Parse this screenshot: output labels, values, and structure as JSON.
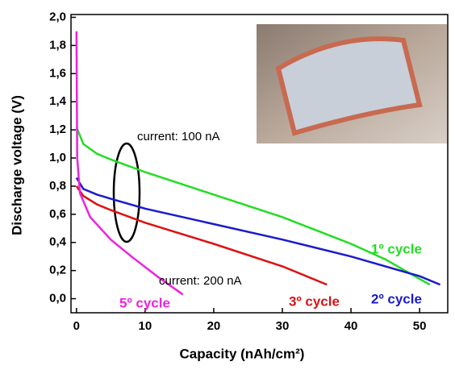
{
  "chart_data": {
    "type": "line",
    "x_label": "Capacity (nAh/cm²)",
    "y_label": "Discharge voltage (V)",
    "xlim": [
      -0.8,
      54.1
    ],
    "ylim": [
      -0.1,
      2.02
    ],
    "xticks": [
      0,
      10,
      20,
      30,
      40,
      50
    ],
    "yticks": [
      {
        "value": 0.0,
        "label": "0,0"
      },
      {
        "value": 0.2,
        "label": "0,2"
      },
      {
        "value": 0.4,
        "label": "0,4"
      },
      {
        "value": 0.6,
        "label": "0,6"
      },
      {
        "value": 0.8,
        "label": "0,8"
      },
      {
        "value": 1.0,
        "label": "1,0"
      },
      {
        "value": 1.2,
        "label": "1,2"
      },
      {
        "value": 1.4,
        "label": "1,4"
      },
      {
        "value": 1.6,
        "label": "1,6"
      },
      {
        "value": 1.8,
        "label": "1,8"
      },
      {
        "value": 2.0,
        "label": "2,0"
      }
    ],
    "annotations": [
      "current: 100 nA",
      "current: 200 nA"
    ],
    "series": [
      {
        "name": "1º cycle",
        "color": "#22dd22",
        "x": [
          0,
          1,
          3,
          5,
          10,
          20,
          30,
          40,
          45,
          50,
          51.5
        ],
        "values": [
          1.22,
          1.1,
          1.03,
          0.99,
          0.9,
          0.74,
          0.58,
          0.39,
          0.28,
          0.14,
          0.1
        ]
      },
      {
        "name": "2º cycle",
        "color": "#1a1acc",
        "x": [
          0,
          1,
          3,
          5,
          10,
          20,
          30,
          40,
          50,
          53
        ],
        "values": [
          0.86,
          0.78,
          0.74,
          0.71,
          0.64,
          0.53,
          0.42,
          0.3,
          0.16,
          0.1
        ]
      },
      {
        "name": "3º cycle",
        "color": "#dd1111",
        "x": [
          0,
          1,
          3,
          5,
          10,
          20,
          30,
          36.5
        ],
        "values": [
          0.8,
          0.73,
          0.67,
          0.63,
          0.54,
          0.39,
          0.23,
          0.1
        ]
      },
      {
        "name": "5º cycle",
        "color": "#ee22dd",
        "x": [
          0,
          0.1,
          0.5,
          2,
          5,
          8,
          12,
          15.5
        ],
        "values": [
          1.9,
          1.0,
          0.75,
          0.58,
          0.42,
          0.3,
          0.15,
          0.03
        ]
      }
    ]
  }
}
